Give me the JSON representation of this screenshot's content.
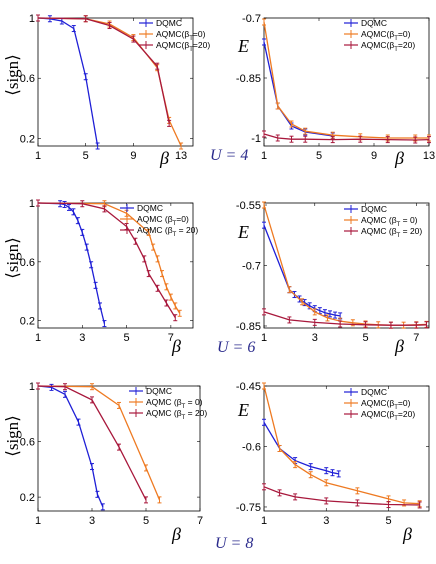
{
  "colors": {
    "DQMC": "#1f1fd6",
    "AQMC_beta0": "#ee7a22",
    "AQMC_beta20": "#a8183c"
  },
  "row_labels": [
    "U = 4",
    "U = 6",
    "U = 8"
  ],
  "chart_data": [
    {
      "id": "sign-u4",
      "type": "line",
      "ylabel": "⟨sign⟩",
      "xlabel": "β",
      "xlim": [
        1,
        14
      ],
      "ylim": [
        0.15,
        1.0
      ],
      "xticks": [
        1,
        5,
        9,
        13
      ],
      "yticks": [
        0.2,
        0.6,
        1
      ],
      "ytick_labels": [
        "0.2",
        "0.6",
        "1"
      ],
      "legend": [
        "DQMC",
        "AQMC(β_T=0)",
        "AQMC(β_T=20)"
      ],
      "series": [
        {
          "name": "DQMC",
          "color": "DQMC",
          "x": [
            1,
            2,
            3,
            4,
            5,
            6
          ],
          "y": [
            1.0,
            0.995,
            0.98,
            0.93,
            0.61,
            0.15
          ]
        },
        {
          "name": "AQMC(β_T=0)",
          "color": "AQMC_beta0",
          "x": [
            1,
            5,
            7,
            9,
            11,
            12,
            13
          ],
          "y": [
            1.0,
            0.995,
            0.96,
            0.87,
            0.67,
            0.32,
            0.15
          ]
        },
        {
          "name": "AQMC(β_T=20)",
          "color": "AQMC_beta20",
          "x": [
            1,
            5,
            7,
            9,
            11,
            12
          ],
          "y": [
            1.0,
            0.995,
            0.95,
            0.86,
            0.68,
            0.3
          ]
        }
      ]
    },
    {
      "id": "energy-u4",
      "type": "line",
      "ylabel": "E",
      "xlabel": "β",
      "xlim": [
        1,
        13
      ],
      "ylim": [
        -1.02,
        -0.7
      ],
      "xticks": [
        1,
        5,
        9,
        13
      ],
      "yticks": [
        -1,
        -0.85,
        -0.7
      ],
      "ytick_labels": [
        "-1",
        "-0.85",
        "-0.7"
      ],
      "legend": [
        "DQMC",
        "AQMC(β_T=0)",
        "AQMC(β_T=20)"
      ],
      "series": [
        {
          "name": "DQMC",
          "color": "DQMC",
          "x": [
            1,
            2,
            3,
            4,
            6
          ],
          "y": [
            -0.76,
            -0.92,
            -0.97,
            -0.985,
            -0.995
          ]
        },
        {
          "name": "AQMC(β_T=0)",
          "color": "AQMC_beta0",
          "x": [
            1,
            2,
            3,
            4,
            6,
            8,
            10,
            12,
            13
          ],
          "y": [
            -0.71,
            -0.92,
            -0.965,
            -0.983,
            -0.993,
            -0.997,
            -1.0,
            -1.0,
            -1.0
          ]
        },
        {
          "name": "AQMC(β_T=20)",
          "color": "AQMC_beta20",
          "x": [
            1,
            2,
            3,
            4,
            6,
            8,
            10,
            12,
            13
          ],
          "y": [
            -0.99,
            -1.0,
            -1.003,
            -1.003,
            -1.004,
            -1.003,
            -1.004,
            -1.005,
            -1.004
          ]
        }
      ]
    },
    {
      "id": "sign-u6",
      "type": "line",
      "ylabel": "⟨sign⟩",
      "xlabel": "β",
      "xlim": [
        1,
        8
      ],
      "ylim": [
        0.15,
        1.0
      ],
      "xticks": [
        1,
        3,
        5,
        7
      ],
      "yticks": [
        0.2,
        0.6,
        1
      ],
      "ytick_labels": [
        "0.2",
        "0.6",
        "1"
      ],
      "legend": [
        "DQMC",
        "AQMC (β_T=0)",
        "AQMC (β_T = 20)"
      ],
      "series": [
        {
          "name": "DQMC",
          "color": "DQMC",
          "x": [
            1,
            2,
            2.2,
            2.4,
            2.6,
            2.8,
            3,
            3.2,
            3.4,
            3.6,
            3.8,
            4
          ],
          "y": [
            1.0,
            0.995,
            0.99,
            0.97,
            0.94,
            0.88,
            0.8,
            0.7,
            0.58,
            0.44,
            0.3,
            0.18
          ]
        },
        {
          "name": "AQMC (β_T=0)",
          "color": "AQMC_beta0",
          "x": [
            1,
            4,
            5,
            6,
            6.2,
            6.4,
            6.6,
            6.8,
            7,
            7.2,
            7.4
          ],
          "y": [
            1.0,
            0.995,
            0.93,
            0.8,
            0.7,
            0.62,
            0.52,
            0.43,
            0.36,
            0.3,
            0.25
          ]
        },
        {
          "name": "AQMC (β_T = 20)",
          "color": "AQMC_beta20",
          "x": [
            1,
            3,
            4,
            5,
            5.4,
            5.8,
            6,
            6.4,
            6.8,
            7.2
          ],
          "y": [
            1.0,
            0.995,
            0.96,
            0.84,
            0.74,
            0.62,
            0.52,
            0.42,
            0.32,
            0.22
          ]
        }
      ]
    },
    {
      "id": "energy-u6",
      "type": "line",
      "ylabel": "E",
      "xlabel": "β",
      "xlim": [
        1,
        7.5
      ],
      "ylim": [
        -0.855,
        -0.545
      ],
      "xticks": [
        1,
        3,
        5,
        7
      ],
      "yticks": [
        -0.85,
        -0.7,
        -0.55
      ],
      "ytick_labels": [
        "-0.85",
        "-0.7",
        "-0.55"
      ],
      "legend": [
        "DQMC",
        "AQMC (β_T = 0)",
        "AQMC (β_T = 20)"
      ],
      "series": [
        {
          "name": "DQMC",
          "color": "DQMC",
          "x": [
            1,
            2,
            2.2,
            2.4,
            2.6,
            2.8,
            3,
            3.2,
            3.4,
            3.6,
            3.8,
            4
          ],
          "y": [
            -0.6,
            -0.76,
            -0.772,
            -0.783,
            -0.792,
            -0.8,
            -0.807,
            -0.812,
            -0.817,
            -0.82,
            -0.823,
            -0.825
          ]
        },
        {
          "name": "AQMC (β_T = 0)",
          "color": "AQMC_beta0",
          "x": [
            1,
            2,
            2.5,
            3,
            3.5,
            4,
            4.5,
            5,
            5.5,
            6,
            6.5,
            7,
            7.4
          ],
          "y": [
            -0.55,
            -0.76,
            -0.79,
            -0.815,
            -0.83,
            -0.838,
            -0.842,
            -0.845,
            -0.847,
            -0.848,
            -0.848,
            -0.847,
            -0.846
          ]
        },
        {
          "name": "AQMC (β_T = 20)",
          "color": "AQMC_beta20",
          "x": [
            1,
            2,
            3,
            4,
            5,
            6,
            7,
            7.4
          ],
          "y": [
            -0.815,
            -0.835,
            -0.841,
            -0.845,
            -0.847,
            -0.848,
            -0.848,
            -0.847
          ]
        }
      ]
    },
    {
      "id": "sign-u8",
      "type": "line",
      "ylabel": "⟨sign⟩",
      "xlabel": "β",
      "xlim": [
        1,
        7
      ],
      "ylim": [
        0.1,
        1.0
      ],
      "xticks": [
        1,
        3,
        5,
        7
      ],
      "yticks": [
        0.2,
        0.6,
        1
      ],
      "ytick_labels": [
        "0.2",
        "0.6",
        "1"
      ],
      "legend": [
        "DQMC",
        "AQMC (β_T = 0)",
        "AQMC (β_T = 20)"
      ],
      "series": [
        {
          "name": "DQMC",
          "color": "DQMC",
          "x": [
            1,
            1.5,
            2,
            2.5,
            3,
            3.2,
            3.4
          ],
          "y": [
            1.0,
            0.99,
            0.94,
            0.74,
            0.42,
            0.22,
            0.13
          ]
        },
        {
          "name": "AQMC (β_T = 0)",
          "color": "AQMC_beta0",
          "x": [
            1,
            3,
            4,
            5,
            5.5
          ],
          "y": [
            1.0,
            0.995,
            0.86,
            0.41,
            0.18
          ]
        },
        {
          "name": "AQMC (β_T = 20)",
          "color": "AQMC_beta20",
          "x": [
            1,
            2,
            3,
            4,
            5
          ],
          "y": [
            1.0,
            0.995,
            0.9,
            0.56,
            0.18
          ]
        }
      ]
    },
    {
      "id": "energy-u8",
      "type": "line",
      "ylabel": "E",
      "xlabel": "β",
      "xlim": [
        1,
        6.3
      ],
      "ylim": [
        -0.76,
        -0.45
      ],
      "xticks": [
        1,
        3,
        5
      ],
      "yticks": [
        -0.75,
        -0.6,
        -0.45
      ],
      "ytick_labels": [
        "-0.75",
        "-0.6",
        "-0.45"
      ],
      "legend": [
        "DQMC",
        "AQMC(β_T=0)",
        "AQMC(β_T=20)"
      ],
      "series": [
        {
          "name": "DQMC",
          "color": "DQMC",
          "x": [
            1,
            1.5,
            2,
            2.5,
            3,
            3.2,
            3.4
          ],
          "y": [
            -0.54,
            -0.605,
            -0.635,
            -0.65,
            -0.66,
            -0.665,
            -0.668
          ]
        },
        {
          "name": "AQMC(β_T=0)",
          "color": "AQMC_beta0",
          "x": [
            1,
            1.5,
            2,
            2.5,
            3,
            4,
            5,
            5.5,
            6
          ],
          "y": [
            -0.45,
            -0.605,
            -0.645,
            -0.67,
            -0.69,
            -0.71,
            -0.73,
            -0.74,
            -0.742
          ]
        },
        {
          "name": "AQMC(β_T=20)",
          "color": "AQMC_beta20",
          "x": [
            1,
            1.5,
            2,
            3,
            4,
            5,
            6
          ],
          "y": [
            -0.7,
            -0.715,
            -0.725,
            -0.735,
            -0.74,
            -0.744,
            -0.745
          ]
        }
      ]
    }
  ]
}
